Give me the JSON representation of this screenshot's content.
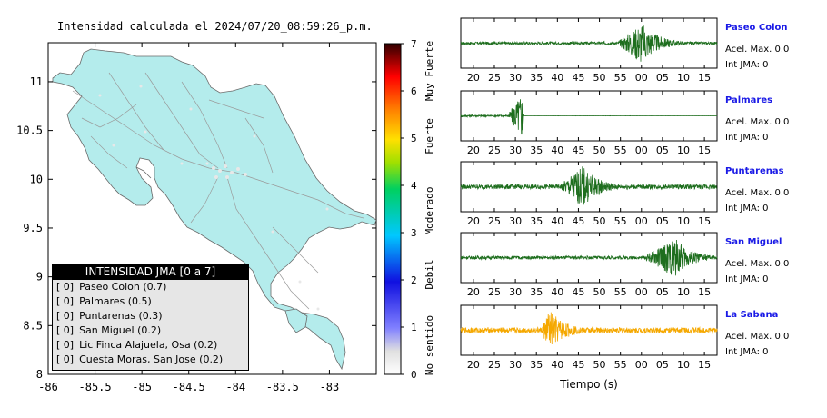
{
  "map": {
    "title": "Intensidad calculada el 2024/07/20_08:59:26_p.m."
  },
  "legend": {
    "title": "INTENSIDAD JMA [0 a 7]",
    "rows": [
      {
        "level": "[ 0]",
        "label": "Paseo Colon (0.7)"
      },
      {
        "level": "[ 0]",
        "label": "Palmares (0.5)"
      },
      {
        "level": "[ 0]",
        "label": "Puntarenas (0.3)"
      },
      {
        "level": "[ 0]",
        "label": "San Miguel (0.2)"
      },
      {
        "level": "[ 0]",
        "label": "Lic Finca Alajuela, Osa (0.2)"
      },
      {
        "level": "[ 0]",
        "label": "Cuesta Moras, San Jose (0.2)"
      }
    ]
  },
  "colors": {
    "land": "#b4ecec",
    "green_trace": "#1e6e1e",
    "orange_trace": "#f5a800",
    "station_name": "#1a1ae6"
  },
  "chart_data": [
    {
      "type": "heatmap",
      "title": "Intensidad calculada el 2024/07/20_08:59:26_p.m.",
      "x_ticks": [
        -86,
        -85.5,
        -85,
        -84.5,
        -84,
        -83.5,
        -83
      ],
      "y_ticks": [
        8,
        8.5,
        9,
        9.5,
        10,
        10.5,
        11
      ],
      "xlim": [
        -86,
        -82.5
      ],
      "ylim": [
        8,
        11.4
      ],
      "grid": false,
      "legend_placement": "bottom-left",
      "scale": {
        "ticks": [
          0,
          1,
          2,
          3,
          4,
          5,
          6,
          7
        ],
        "labels": [
          "No sentido",
          "Debil",
          "Moderado",
          "Fuerte",
          "Muy Fuerte"
        ],
        "range": [
          0,
          7
        ]
      }
    },
    {
      "type": "line",
      "xlabel": "Tiempo (s)",
      "x_tick_labels": [
        "20",
        "25",
        "30",
        "35",
        "40",
        "45",
        "50",
        "55",
        "00",
        "05",
        "10",
        "15"
      ],
      "series": [
        {
          "name": "Paseo Colon",
          "acel": "Acel. Max. 0.0",
          "int": "Int JMA: 0",
          "burst_start": 54,
          "burst_peak": 60,
          "peak": 0.9,
          "noise": 0.06,
          "color": "#1e6e1e"
        },
        {
          "name": "Palmares",
          "acel": "Acel. Max. 0.0",
          "int": "Int JMA: 0",
          "burst_start": 28,
          "burst_peak": 31.5,
          "peak": 1.0,
          "noise": 0.04,
          "end": 32,
          "color": "#1e6e1e"
        },
        {
          "name": "Puntarenas",
          "acel": "Acel. Max. 0.0",
          "int": "Int JMA: 0",
          "burst_start": 40,
          "burst_peak": 46,
          "peak": 0.9,
          "noise": 0.1,
          "color": "#1e6e1e"
        },
        {
          "name": "San Miguel",
          "acel": "Acel. Max. 0.0",
          "int": "Int JMA: 0",
          "burst_start": 60,
          "burst_peak": 68,
          "peak": 0.85,
          "noise": 0.07,
          "color": "#1e6e1e"
        },
        {
          "name": "La Sabana",
          "acel": "Acel. Max. 0.0",
          "int": "Int JMA: 0",
          "burst_start": 36,
          "burst_peak": 38,
          "peak": 0.9,
          "noise": 0.12,
          "color": "#f5a800"
        }
      ]
    }
  ]
}
